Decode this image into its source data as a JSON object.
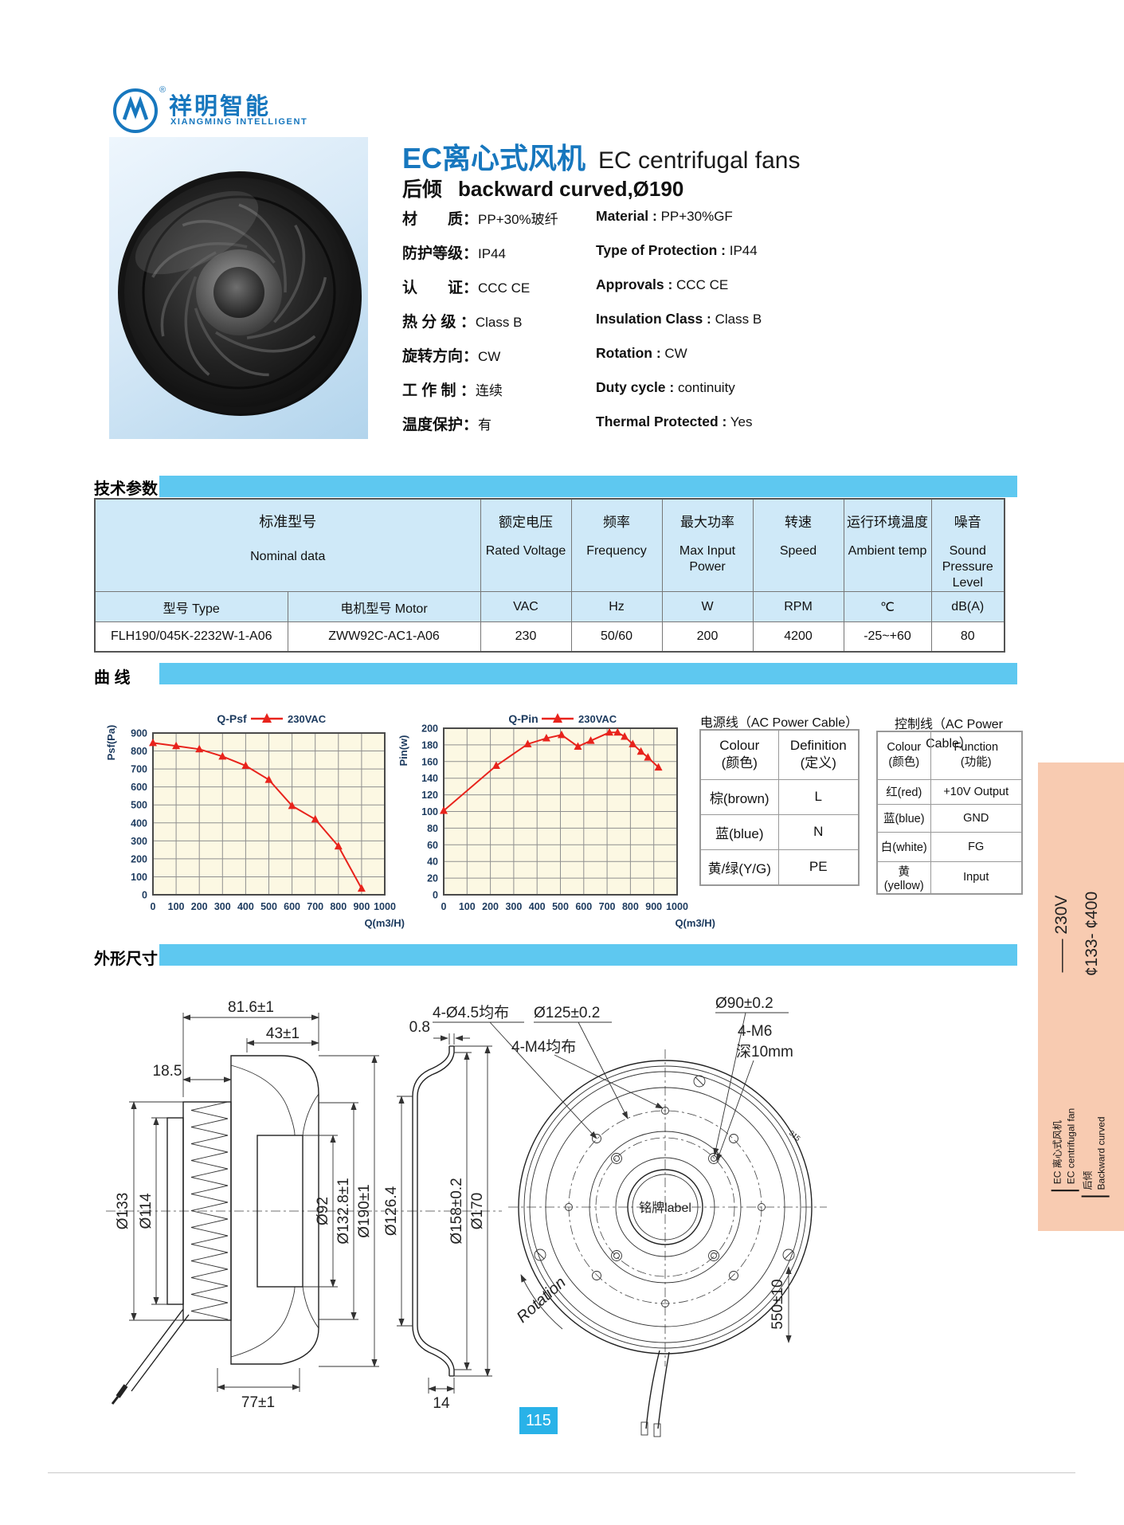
{
  "brand": {
    "zh": "祥明智能",
    "en": "XIANGMING INTELLIGENT",
    "reg": "®"
  },
  "product": {
    "title_zh": "EC离心式风机",
    "title_en": "EC centrifugal fans",
    "subtitle_zh": "后倾",
    "subtitle_en": "backward curved,Ø190",
    "specs": [
      {
        "zh": "材　　质：",
        "zhv": "PP+30%玻纤",
        "en": "Material :",
        "env": "PP+30%GF"
      },
      {
        "zh": "防护等级：",
        "zhv": "IP44",
        "en": "Type of Protection :",
        "env": "IP44"
      },
      {
        "zh": "认　　证：",
        "zhv": "CCC  CE",
        "en": "Approvals :",
        "env": "CCC  CE"
      },
      {
        "zh": "热 分 级 ：",
        "zhv": "Class B",
        "en": "Insulation Class :",
        "env": "Class B"
      },
      {
        "zh": "旋转方向：",
        "zhv": "CW",
        "en": "Rotation :",
        "env": "CW"
      },
      {
        "zh": "工 作 制 ：",
        "zhv": "连续",
        "en": "Duty cycle :",
        "env": "continuity"
      },
      {
        "zh": "温度保护：",
        "zhv": "有",
        "en": "Thermal Protected :",
        "env": "Yes"
      }
    ]
  },
  "sections": {
    "tech": "技术参数",
    "curve": "曲  线",
    "dims": "外形尺寸"
  },
  "tech_table": {
    "group_zh": "标准型号",
    "group_en": "Nominal data",
    "cols": [
      {
        "zh": "额定电压",
        "en": "Rated Voltage"
      },
      {
        "zh": "频率",
        "en": "Frequency"
      },
      {
        "zh": "最大功率",
        "en": "Max Input Power"
      },
      {
        "zh": "转速",
        "en": "Speed"
      },
      {
        "zh": "运行环境温度",
        "en": "Ambient temp"
      },
      {
        "zh": "噪音",
        "en": "Sound Pressure Level"
      }
    ],
    "sub": [
      "型号 Type",
      "电机型号 Motor",
      "VAC",
      "Hz",
      "W",
      "RPM",
      "℃",
      "dB(A)"
    ],
    "row": [
      "FLH190/045K-2232W-1-A06",
      "ZWW92C-AC1-A06",
      "230",
      "50/60",
      "200",
      "4200",
      "-25~+60",
      "80"
    ]
  },
  "chart_data": [
    {
      "type": "line",
      "title": "Q-Psf",
      "legend": "230VAC",
      "ylabel": "Psf(Pa)",
      "xlabel": "Q(m3/H)",
      "xlim": [
        0,
        1000
      ],
      "ylim": [
        0,
        900
      ],
      "xticks": [
        0,
        100,
        200,
        300,
        400,
        500,
        600,
        700,
        800,
        900,
        1000
      ],
      "yticks": [
        0,
        100,
        200,
        300,
        400,
        500,
        600,
        700,
        800,
        900
      ],
      "x": [
        0,
        100,
        200,
        300,
        400,
        500,
        600,
        700,
        800,
        900
      ],
      "y": [
        845,
        828,
        810,
        770,
        718,
        640,
        495,
        420,
        270,
        35
      ],
      "grid": true,
      "legend_position": "top"
    },
    {
      "type": "line",
      "title": "Q-Pin",
      "legend": "230VAC",
      "ylabel": "Pin(w)",
      "xlabel": "Q(m3/H)",
      "xlim": [
        0,
        1000
      ],
      "ylim": [
        0,
        200
      ],
      "xticks": [
        0,
        100,
        200,
        300,
        400,
        500,
        600,
        700,
        800,
        900,
        1000
      ],
      "yticks": [
        0,
        20,
        40,
        60,
        80,
        100,
        120,
        140,
        160,
        180,
        200
      ],
      "x": [
        0,
        225,
        360,
        440,
        505,
        575,
        630,
        710,
        745,
        775,
        810,
        845,
        875,
        920
      ],
      "y": [
        101,
        155,
        181,
        188,
        192,
        178,
        185,
        195,
        195,
        190,
        181,
        172,
        165,
        153
      ],
      "grid": true,
      "legend_position": "top"
    }
  ],
  "cable_power": {
    "title": "电源线（AC Power Cable）",
    "h1a": "Colour",
    "h1b": "(颜色)",
    "h2a": "Definition",
    "h2b": "(定义)",
    "rows": [
      [
        "棕(brown)",
        "L"
      ],
      [
        "蓝(blue)",
        "N"
      ],
      [
        "黄/绿(Y/G)",
        "PE"
      ]
    ]
  },
  "cable_control": {
    "title": "控制线（AC Power Cable）",
    "h1a": "Colour",
    "h1b": "(颜色)",
    "h2a": "Function",
    "h2b": "(功能)",
    "rows": [
      [
        "红(red)",
        "+10V Output"
      ],
      [
        "蓝(blue)",
        "GND"
      ],
      [
        "白(white)",
        "FG"
      ],
      [
        "黄(yellow)",
        "Input"
      ]
    ]
  },
  "dims": {
    "d81": "81.6±1",
    "d43": "43±1",
    "d18": "18.5",
    "d133": "Ø133",
    "d114": "Ø114",
    "d92": "Ø92",
    "d132": "Ø132.8±1",
    "d190": "Ø190±1",
    "d77": "77±1",
    "d08": "0.8",
    "d126": "Ø126.4",
    "d158": "Ø158±0.2",
    "d170": "Ø170",
    "d14": "14",
    "d45": "4-Ø4.5均布",
    "d125": "Ø125±0.2",
    "dm4": "4-M4均布",
    "d90": "Ø90±0.2",
    "dm6": "4-M6",
    "d10": "深10mm",
    "nameplate": "铭牌label",
    "rotation": "Rotation",
    "d550": "550±10",
    "mark": "315"
  },
  "sidebar": {
    "line1": "—— 230V",
    "line2": "¢133- ¢400",
    "fam_zh": "EC 离心式风机",
    "fam_en": "EC centrifugal fan",
    "sub_zh": "后倾",
    "sub_en": "Backward curved"
  },
  "page": {
    "number": "115"
  },
  "colors": {
    "accent": "#1777be",
    "bar": "#5ec8f0",
    "table_head": "#cfe9f8",
    "chart_bg": "#fcf8e3",
    "line": "#e8231c",
    "sidebar": "#f8cbb1",
    "pagebox": "#29b2e8"
  }
}
